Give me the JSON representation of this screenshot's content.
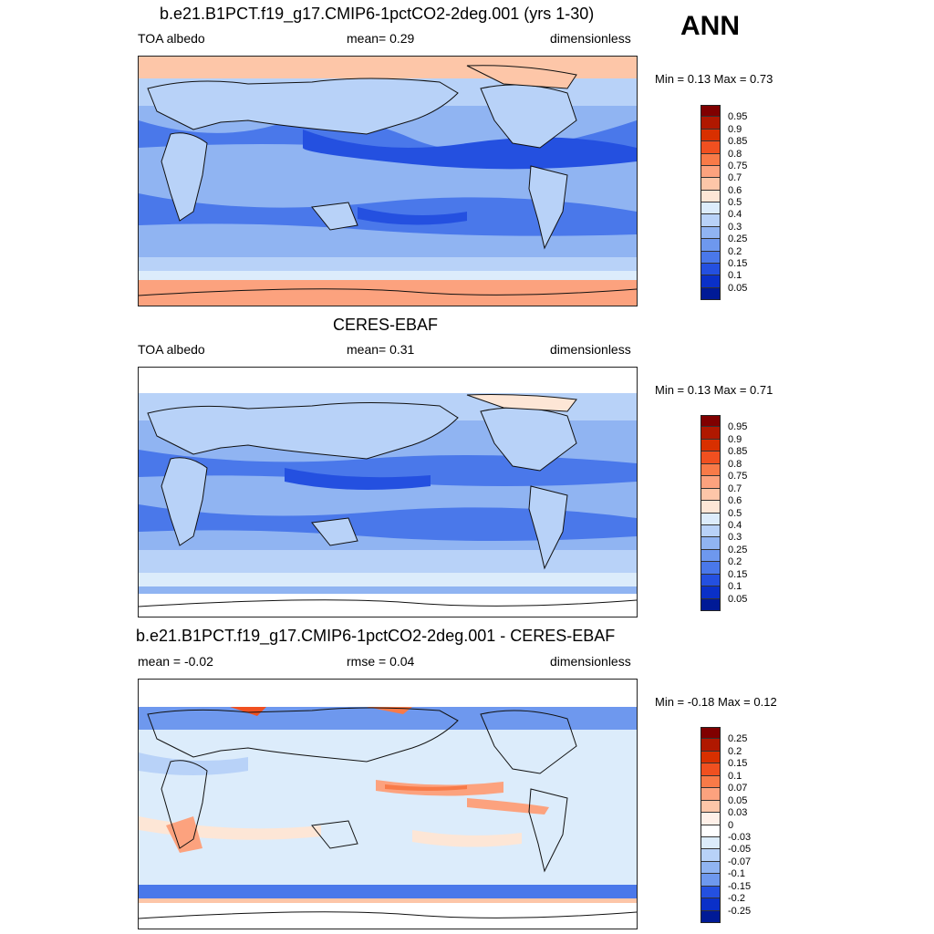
{
  "season": "ANN",
  "panels": [
    {
      "id": "model",
      "title": "b.e21.B1PCT.f19_g17.CMIP6-1pctCO2-2deg.001 (yrs 1-30)",
      "left_label": "TOA albedo",
      "center_label": "mean=   0.29",
      "right_label": "dimensionless",
      "minmax": "Min =   0.13 Max =   0.73",
      "colorbar": {
        "labels": [
          "0.95",
          "0.9",
          "0.85",
          "0.8",
          "0.75",
          "0.7",
          "0.6",
          "0.5",
          "0.4",
          "0.3",
          "0.25",
          "0.2",
          "0.15",
          "0.1",
          "0.05"
        ],
        "colors": [
          "#800000",
          "#b01800",
          "#d83000",
          "#f05020",
          "#f87a48",
          "#fca27e",
          "#fdc6a8",
          "#fde6d6",
          "#dcecfb",
          "#b8d2f8",
          "#90b4f2",
          "#6e98ee",
          "#4a78ea",
          "#2450e0",
          "#0a30c8",
          "#001a96"
        ]
      }
    },
    {
      "id": "obs",
      "title": "CERES-EBAF",
      "left_label": "TOA albedo",
      "center_label": "mean=   0.31",
      "right_label": "dimensionless",
      "minmax": "Min =   0.13 Max =   0.71",
      "colorbar": {
        "labels": [
          "0.95",
          "0.9",
          "0.85",
          "0.8",
          "0.75",
          "0.7",
          "0.6",
          "0.5",
          "0.4",
          "0.3",
          "0.25",
          "0.2",
          "0.15",
          "0.1",
          "0.05"
        ],
        "colors": [
          "#800000",
          "#b01800",
          "#d83000",
          "#f05020",
          "#f87a48",
          "#fca27e",
          "#fdc6a8",
          "#fde6d6",
          "#dcecfb",
          "#b8d2f8",
          "#90b4f2",
          "#6e98ee",
          "#4a78ea",
          "#2450e0",
          "#0a30c8",
          "#001a96"
        ]
      }
    },
    {
      "id": "diff",
      "title": "b.e21.B1PCT.f19_g17.CMIP6-1pctCO2-2deg.001 - CERES-EBAF",
      "left_label": "mean =  -0.02",
      "center_label": "rmse =   0.04",
      "right_label": "dimensionless",
      "minmax": "Min =  -0.18 Max =   0.12",
      "colorbar": {
        "labels": [
          "0.25",
          "0.2",
          "0.15",
          "0.1",
          "0.07",
          "0.05",
          "0.03",
          "0",
          "-0.03",
          "-0.05",
          "-0.07",
          "-0.1",
          "-0.15",
          "-0.2",
          "-0.25"
        ],
        "colors": [
          "#800000",
          "#b01800",
          "#d83000",
          "#f05020",
          "#f87a48",
          "#fca27e",
          "#fdc6a8",
          "#fff0e8",
          "#ffffff",
          "#dcecfb",
          "#b8d2f8",
          "#90b4f2",
          "#6e98ee",
          "#2450e0",
          "#0a30c8",
          "#001a96"
        ]
      }
    }
  ],
  "colors": {
    "high_albedo": "#fca27e",
    "mid_albedo": "#b8d2f8",
    "low_albedo": "#4a78ea",
    "coast": "#111111"
  }
}
